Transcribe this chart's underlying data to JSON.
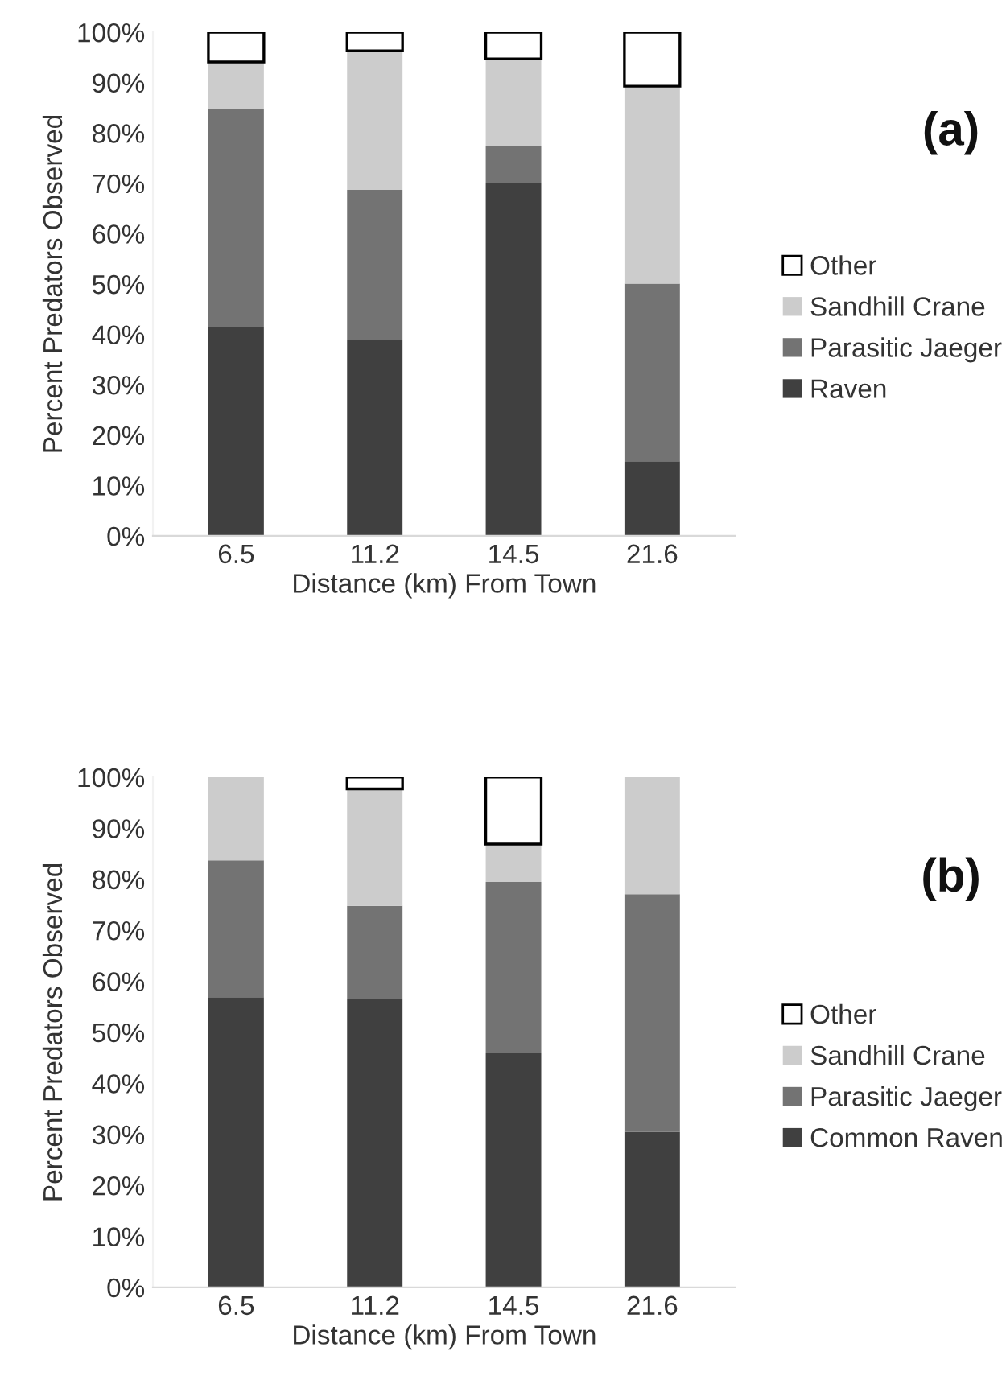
{
  "chart_data": [
    {
      "type": "bar",
      "stacked": true,
      "categories": [
        "6.5",
        "11.2",
        "14.5",
        "21.6"
      ],
      "xlabel": "Distance (km) From Town",
      "ylabel": "Percent Predators Observed",
      "annotations": [
        "(a)"
      ],
      "legend": "right",
      "grid": false,
      "ylim": [
        0,
        100
      ],
      "yticks": [
        {
          "value": 0,
          "label": "0%"
        },
        {
          "value": 10,
          "label": "10%"
        },
        {
          "value": 20,
          "label": "20%"
        },
        {
          "value": 30,
          "label": "30%"
        },
        {
          "value": 40,
          "label": "40%"
        },
        {
          "value": 50,
          "label": "50%"
        },
        {
          "value": 60,
          "label": "60%"
        },
        {
          "value": 70,
          "label": "70%"
        },
        {
          "value": 80,
          "label": "80%"
        },
        {
          "value": 90,
          "label": "90%"
        },
        {
          "value": 100,
          "label": "100%"
        }
      ],
      "series": [
        {
          "name": "Raven",
          "color": "#404040",
          "values": [
            41.5,
            38.9,
            70.1,
            14.8
          ]
        },
        {
          "name": "Parasitic Jaeger",
          "color": "#737373",
          "values": [
            43.3,
            29.8,
            7.4,
            35.3
          ]
        },
        {
          "name": "Sandhill Crane",
          "color": "#cccccc",
          "values": [
            9.3,
            27.6,
            17.2,
            39.2
          ]
        },
        {
          "name": "Other",
          "color": "#ffffff",
          "values": [
            5.9,
            3.7,
            5.3,
            10.7
          ]
        }
      ]
    },
    {
      "type": "bar",
      "stacked": true,
      "categories": [
        "6.5",
        "11.2",
        "14.5",
        "21.6"
      ],
      "xlabel": "Distance (km) From Town",
      "ylabel": "Percent Predators Observed",
      "annotations": [
        "(b)"
      ],
      "legend": "right",
      "grid": false,
      "ylim": [
        0,
        100
      ],
      "yticks": [
        {
          "value": 0,
          "label": "0%"
        },
        {
          "value": 10,
          "label": "10%"
        },
        {
          "value": 20,
          "label": "20%"
        },
        {
          "value": 30,
          "label": "30%"
        },
        {
          "value": 40,
          "label": "40%"
        },
        {
          "value": 50,
          "label": "50%"
        },
        {
          "value": 60,
          "label": "60%"
        },
        {
          "value": 70,
          "label": "70%"
        },
        {
          "value": 80,
          "label": "80%"
        },
        {
          "value": 90,
          "label": "90%"
        },
        {
          "value": 100,
          "label": "100%"
        }
      ],
      "series": [
        {
          "name": "Common Raven",
          "color": "#404040",
          "values": [
            56.9,
            56.5,
            45.9,
            30.5
          ]
        },
        {
          "name": "Parasitic Jaeger",
          "color": "#737373",
          "values": [
            26.8,
            18.3,
            33.6,
            46.6
          ]
        },
        {
          "name": "Sandhill Crane",
          "color": "#cccccc",
          "values": [
            16.3,
            22.9,
            7.4,
            22.9
          ]
        },
        {
          "name": "Other",
          "color": "#ffffff",
          "values": [
            null,
            2.3,
            13.1,
            null
          ]
        }
      ]
    }
  ]
}
